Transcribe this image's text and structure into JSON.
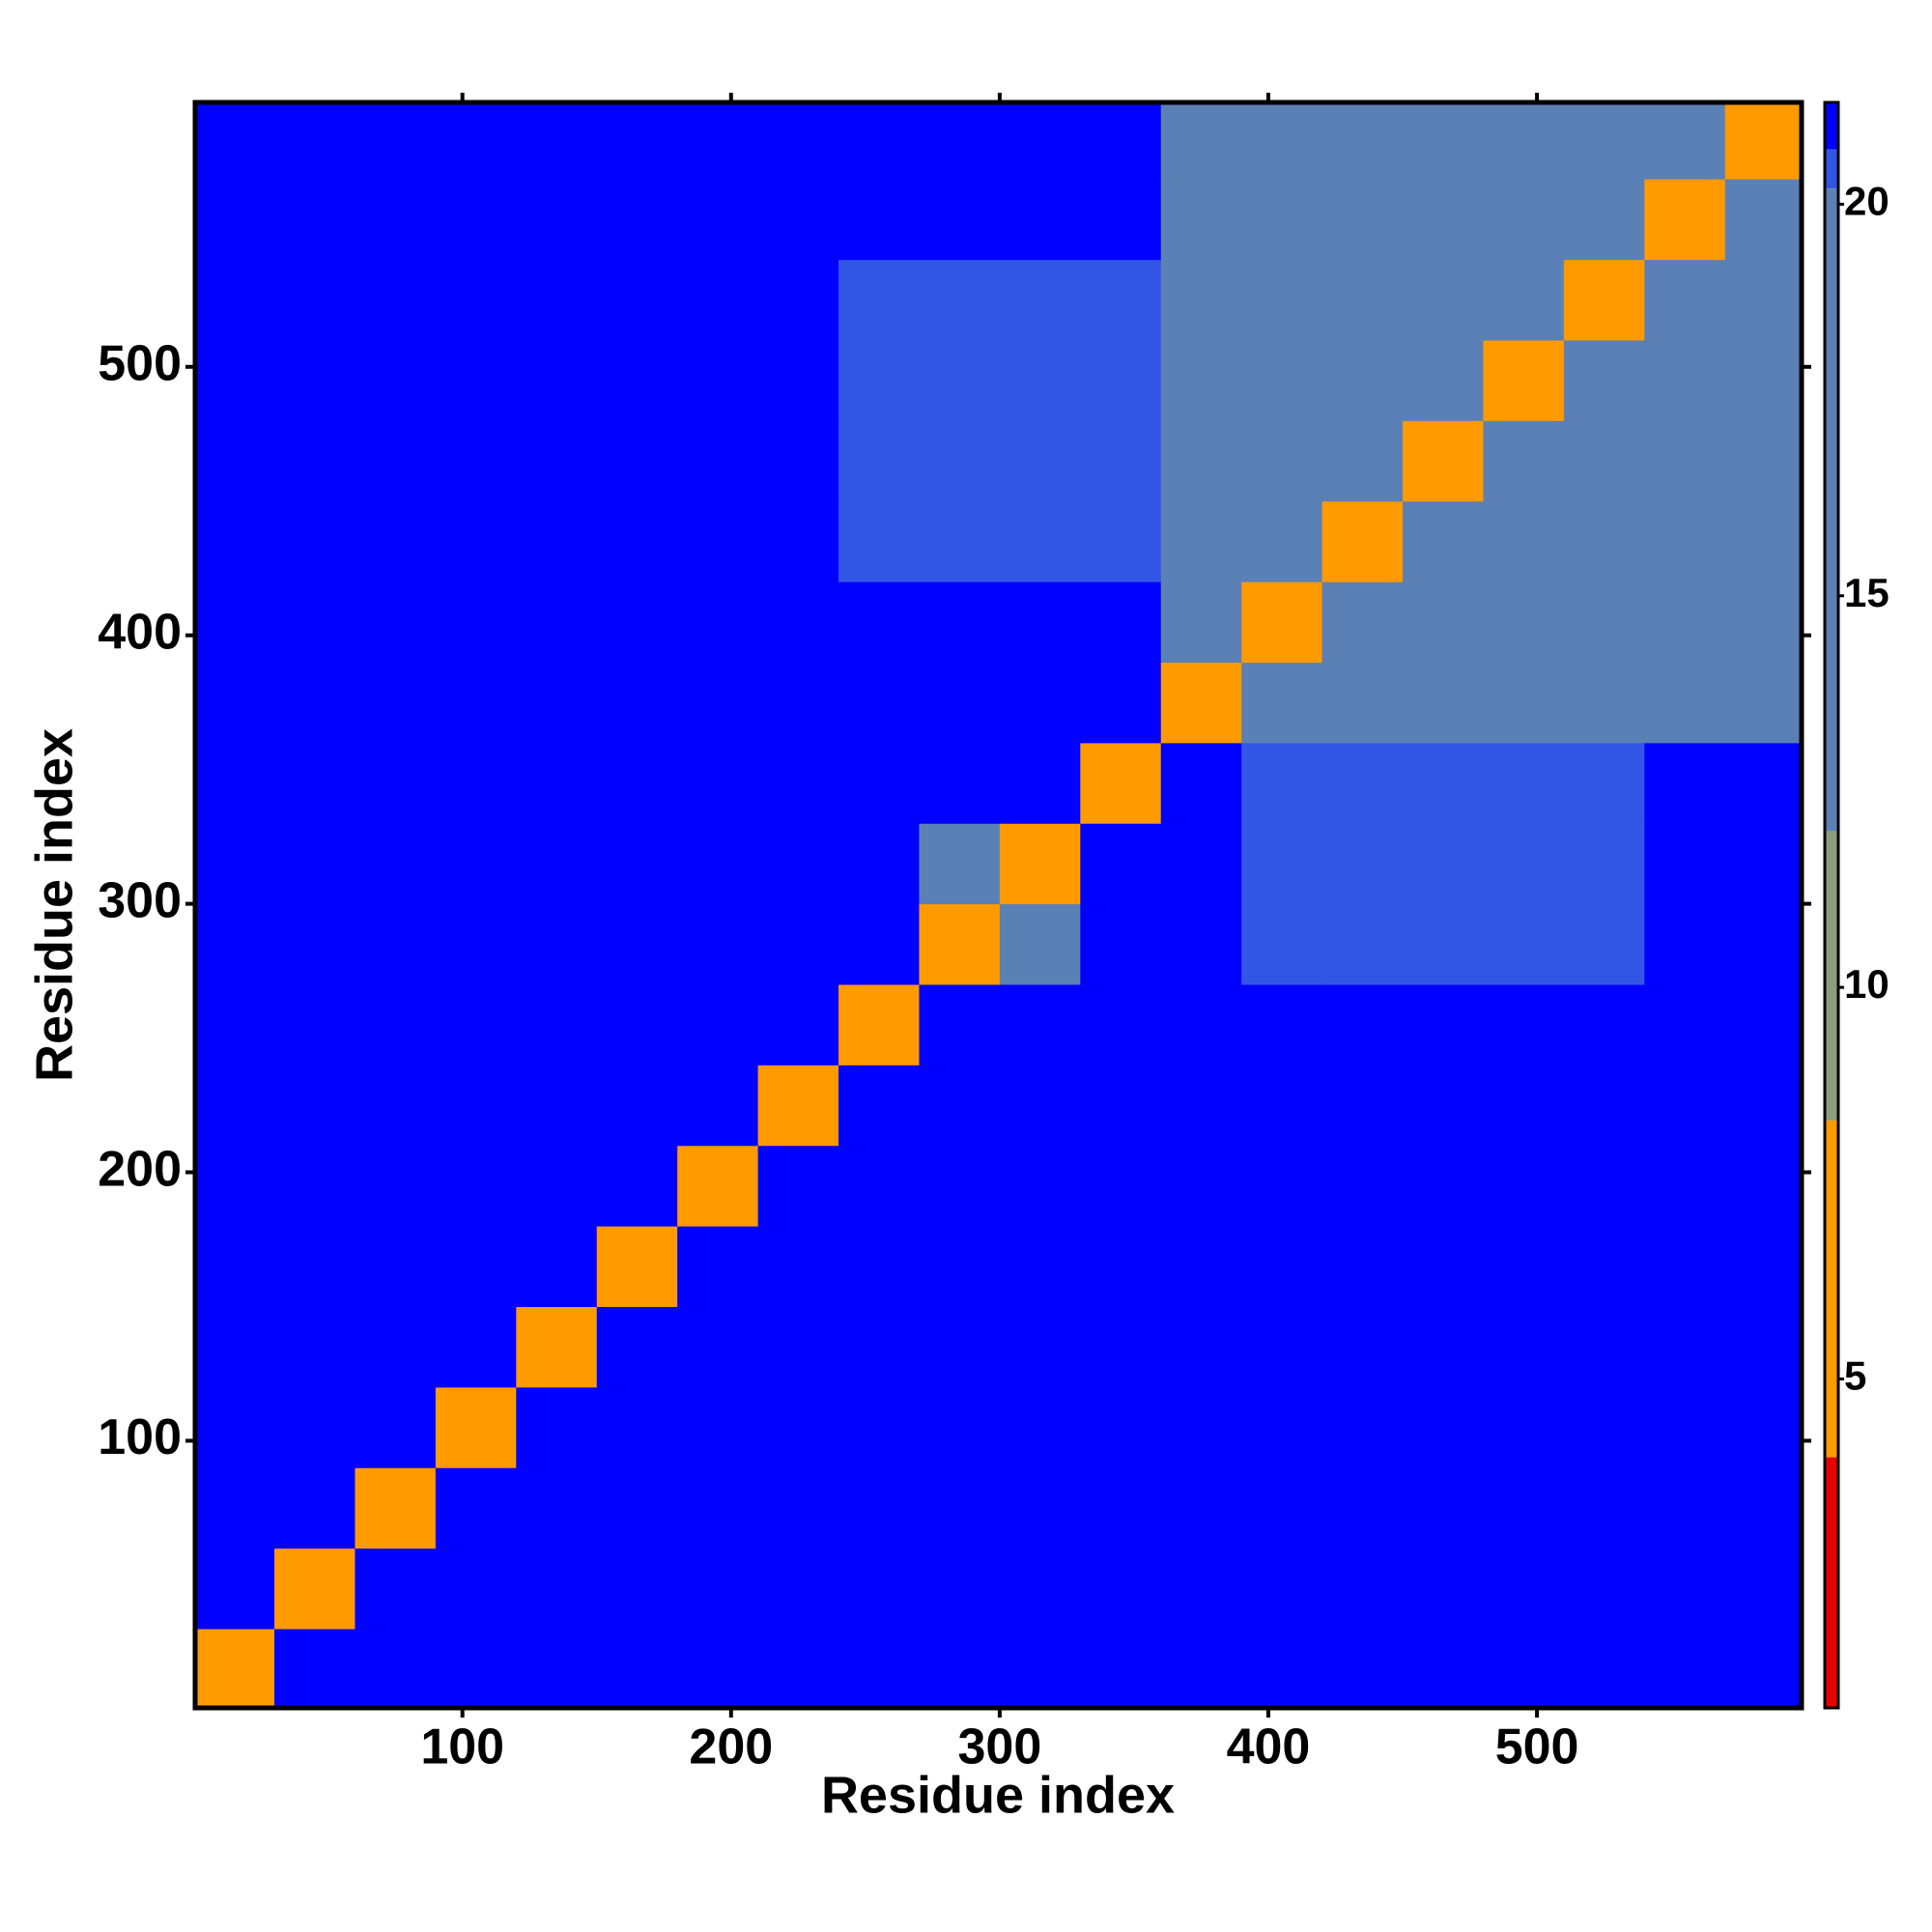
{
  "chart_data": {
    "type": "heatmap",
    "xlabel": "Residue index",
    "ylabel": "Residue index",
    "xlim": [
      0.5,
      598.5
    ],
    "ylim": [
      0.5,
      598.5
    ],
    "xticks": [
      100,
      200,
      300,
      400,
      500
    ],
    "yticks": [
      100,
      200,
      300,
      400,
      500
    ],
    "bins": [
      0,
      30,
      60,
      90,
      120,
      150,
      180,
      210,
      240,
      270,
      300,
      330,
      360,
      390,
      420,
      450,
      480,
      510,
      540,
      570,
      600
    ],
    "z": [
      [
        5,
        21,
        21,
        21,
        21,
        21,
        21,
        21,
        21,
        21,
        21,
        21,
        21,
        21,
        21,
        21,
        21,
        21,
        21,
        21
      ],
      [
        21,
        5,
        21,
        21,
        21,
        21,
        21,
        21,
        21,
        21,
        21,
        21,
        21,
        21,
        21,
        21,
        21,
        21,
        21,
        21
      ],
      [
        21,
        21,
        5,
        21,
        21,
        21,
        21,
        21,
        21,
        21,
        21,
        21,
        21,
        21,
        21,
        21,
        21,
        21,
        21,
        21
      ],
      [
        21,
        21,
        21,
        5,
        21,
        21,
        21,
        21,
        21,
        21,
        21,
        21,
        21,
        21,
        21,
        21,
        21,
        21,
        21,
        21
      ],
      [
        21,
        21,
        21,
        21,
        5,
        21,
        21,
        21,
        21,
        21,
        21,
        21,
        21,
        21,
        21,
        21,
        21,
        21,
        21,
        21
      ],
      [
        21,
        21,
        21,
        21,
        21,
        5,
        21,
        21,
        21,
        21,
        21,
        21,
        21,
        21,
        21,
        21,
        21,
        21,
        21,
        21
      ],
      [
        21,
        21,
        21,
        21,
        21,
        21,
        5,
        21,
        21,
        21,
        21,
        21,
        21,
        21,
        21,
        21,
        21,
        21,
        21,
        21
      ],
      [
        21,
        21,
        21,
        21,
        21,
        21,
        21,
        5,
        21,
        21,
        21,
        21,
        21,
        21,
        21,
        21,
        21,
        21,
        21,
        21
      ],
      [
        21,
        21,
        21,
        21,
        21,
        21,
        21,
        21,
        5,
        21,
        21,
        21,
        21,
        21,
        21,
        21,
        21,
        21,
        21,
        21
      ],
      [
        21,
        21,
        21,
        21,
        21,
        21,
        21,
        21,
        21,
        5,
        16,
        21,
        21,
        20.5,
        20.5,
        20.5,
        20.5,
        20.5,
        21,
        21
      ],
      [
        21,
        21,
        21,
        21,
        21,
        21,
        21,
        21,
        21,
        16,
        5,
        21,
        21,
        20.5,
        20.5,
        20.5,
        20.5,
        20.5,
        21,
        21
      ],
      [
        21,
        21,
        21,
        21,
        21,
        21,
        21,
        21,
        21,
        21,
        21,
        5,
        21,
        20.5,
        20.5,
        20.5,
        20.5,
        20.5,
        21,
        21
      ],
      [
        21,
        21,
        21,
        21,
        21,
        21,
        21,
        21,
        21,
        21,
        21,
        21,
        5,
        17,
        17,
        17,
        17,
        17,
        17,
        17
      ],
      [
        21,
        21,
        21,
        21,
        21,
        21,
        21,
        21,
        21,
        21,
        21,
        21,
        17,
        5,
        17,
        17,
        17,
        17,
        17,
        17
      ],
      [
        21,
        21,
        21,
        21,
        21,
        21,
        21,
        21,
        20.5,
        20.5,
        20.5,
        20.5,
        17,
        17,
        5,
        17,
        17,
        17,
        17,
        17
      ],
      [
        21,
        21,
        21,
        21,
        21,
        21,
        21,
        21,
        20.5,
        20.5,
        20.5,
        20.5,
        17,
        17,
        17,
        5,
        17,
        17,
        17,
        17
      ],
      [
        21,
        21,
        21,
        21,
        21,
        21,
        21,
        21,
        20.5,
        20.5,
        20.5,
        20.5,
        17,
        17,
        17,
        17,
        5,
        17,
        17,
        17
      ],
      [
        21,
        21,
        21,
        21,
        21,
        21,
        21,
        21,
        20.5,
        20.5,
        20.5,
        20.5,
        17,
        17,
        17,
        17,
        17,
        5,
        17,
        17
      ],
      [
        21,
        21,
        21,
        21,
        21,
        21,
        21,
        21,
        21,
        21,
        21,
        21,
        17,
        17,
        17,
        17,
        17,
        17,
        5,
        17
      ],
      [
        21,
        21,
        21,
        21,
        21,
        21,
        21,
        21,
        21,
        21,
        21,
        21,
        17,
        17,
        17,
        17,
        17,
        17,
        17,
        5
      ]
    ],
    "clim": [
      0.8,
      21.3
    ],
    "cticks": [
      5,
      10,
      15,
      20
    ],
    "colorscale": [
      [
        4,
        "#e80000"
      ],
      [
        8.3,
        "#ff9a00"
      ],
      [
        12,
        "#8c9c7c"
      ],
      [
        20.2,
        "#5b80b6"
      ],
      [
        20.7,
        "#3355e6"
      ],
      [
        21.3,
        "#0000ff"
      ]
    ]
  }
}
